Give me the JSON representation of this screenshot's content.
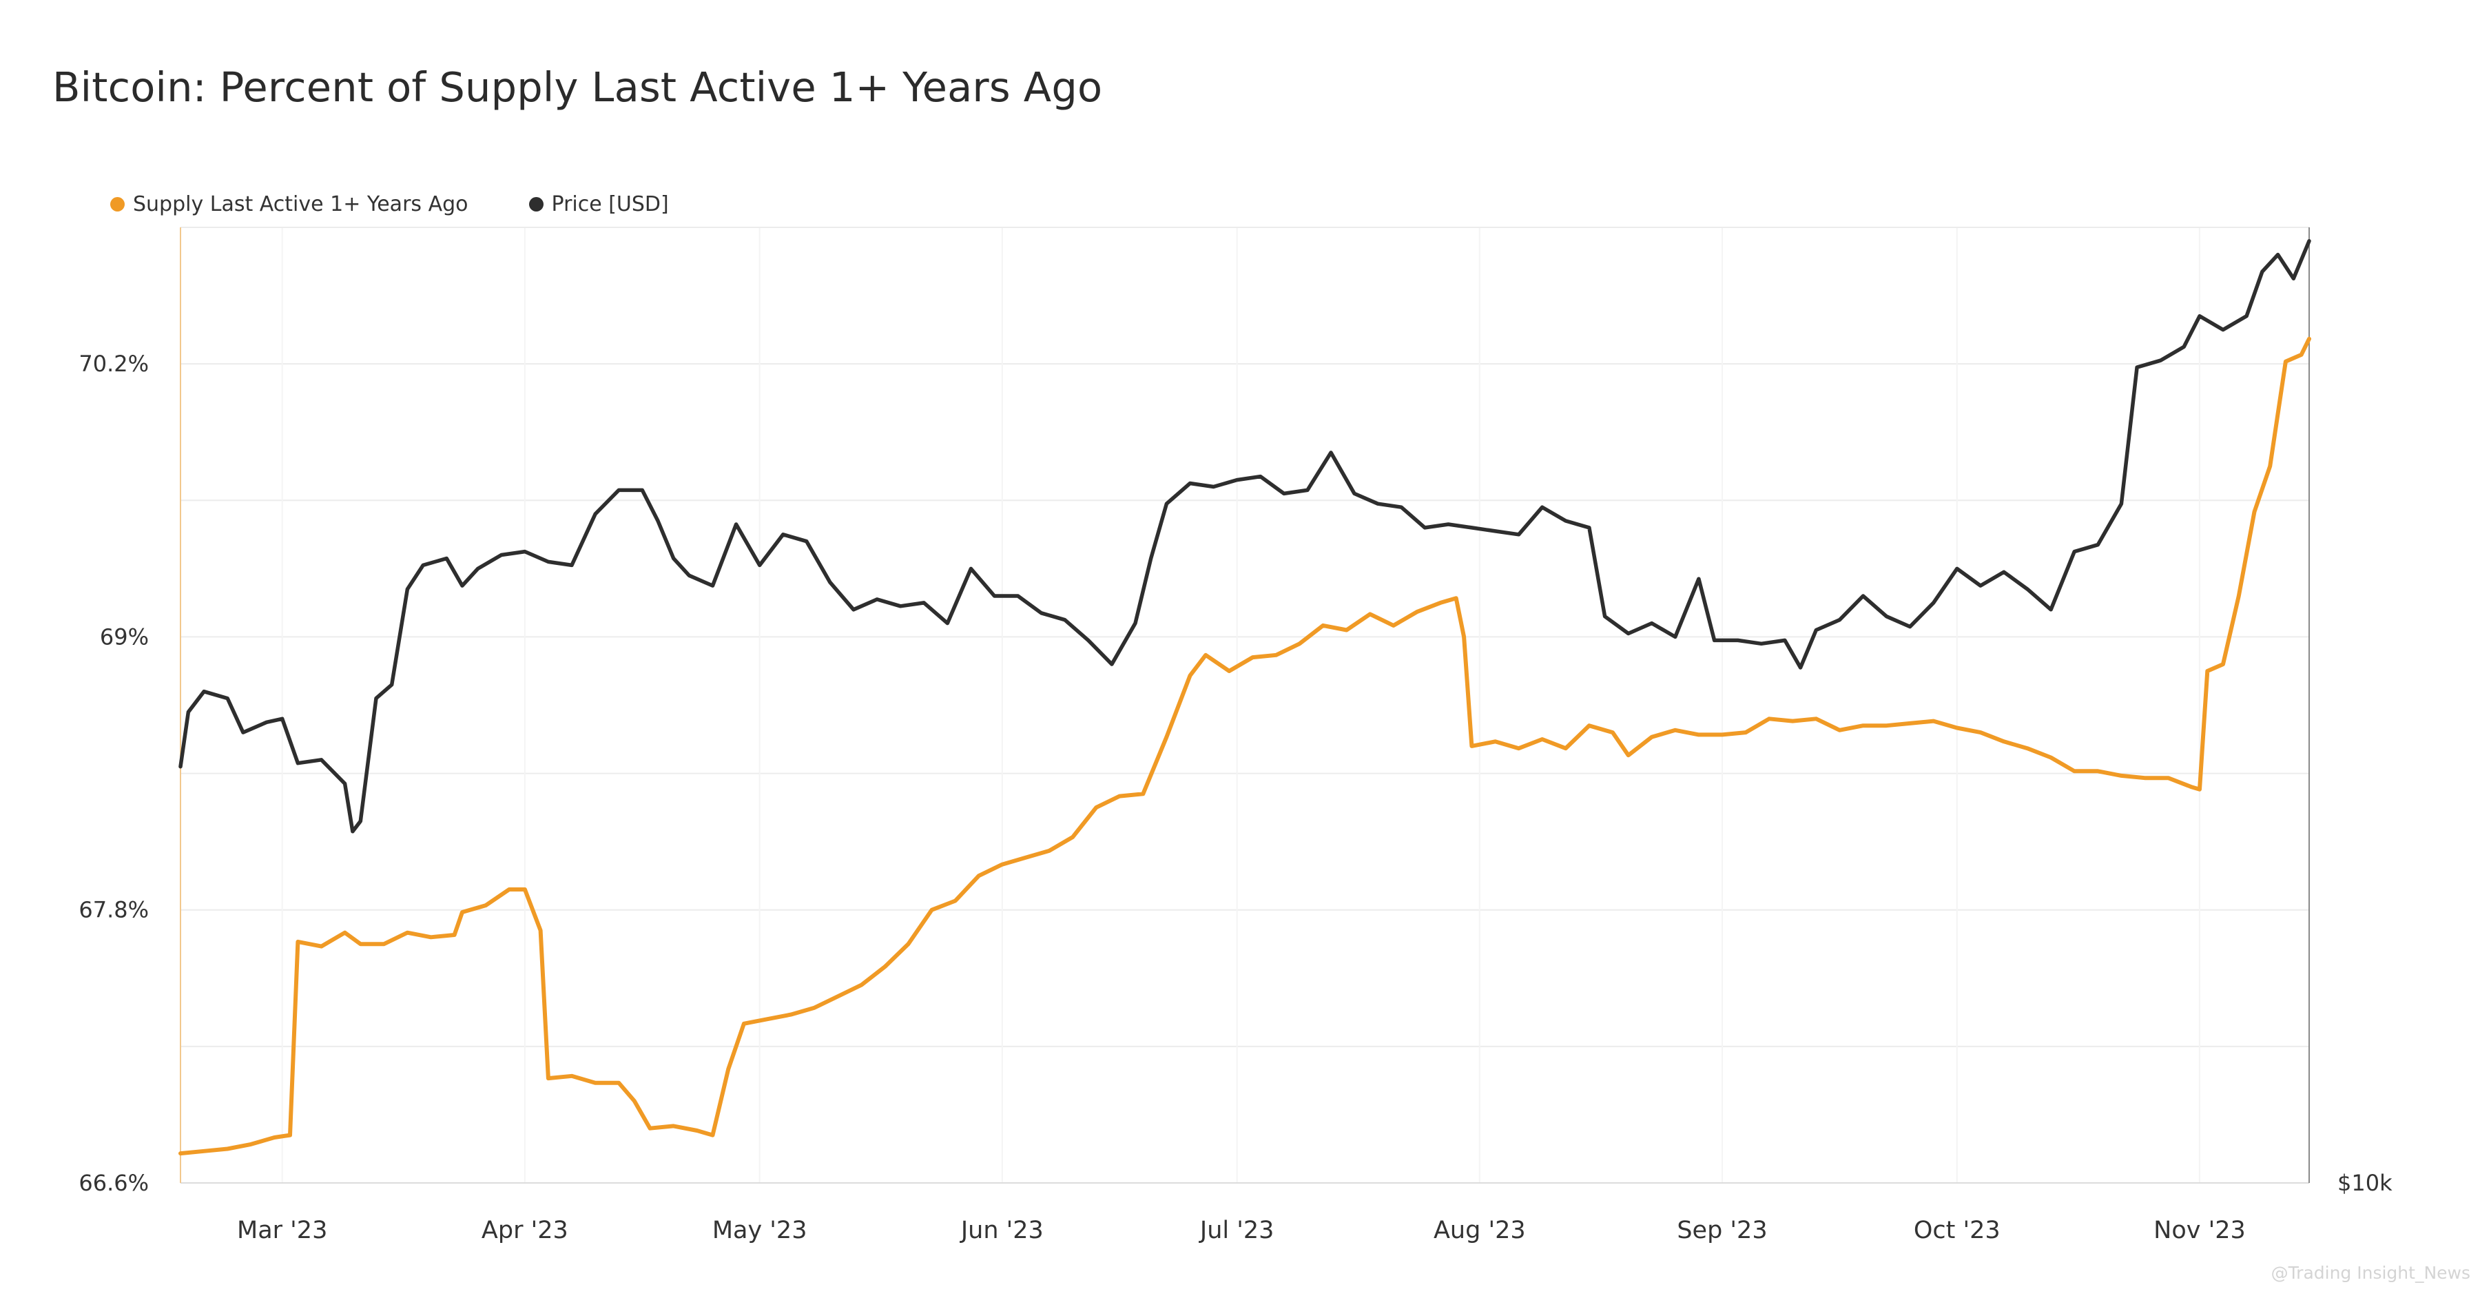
{
  "chart_data": {
    "type": "line",
    "title": "Bitcoin: Percent of Supply Last Active 1+ Years Ago",
    "x_ticks": [
      "Mar '23",
      "Apr '23",
      "May '23",
      "Jun '23",
      "Jul '23",
      "Aug '23",
      "Sep '23",
      "Oct '23",
      "Nov '23"
    ],
    "x_tick_dates": [
      "2023-03-01",
      "2023-04-01",
      "2023-05-01",
      "2023-06-01",
      "2023-07-01",
      "2023-08-01",
      "2023-09-01",
      "2023-10-01",
      "2023-11-01"
    ],
    "x_range": [
      "2023-02-16",
      "2023-11-15"
    ],
    "y_left_ticks": [
      "70.2%",
      "69%",
      "67.8%",
      "66.6%"
    ],
    "y_left_tick_values": [
      70.2,
      69.0,
      67.8,
      66.6
    ],
    "y_left_range": [
      66.6,
      70.8
    ],
    "y_right_ticks": [
      "$10k"
    ],
    "y_right_range": [
      10000,
      38000
    ],
    "grid": true,
    "legend_position": "top-left",
    "series": [
      {
        "name": "Supply Last Active 1+ Years Ago",
        "axis": "left",
        "color": "#f09a25",
        "points": [
          [
            "2023-02-16",
            66.73
          ],
          [
            "2023-02-19",
            66.74
          ],
          [
            "2023-02-22",
            66.75
          ],
          [
            "2023-02-25",
            66.77
          ],
          [
            "2023-02-28",
            66.8
          ],
          [
            "2023-03-02",
            66.81
          ],
          [
            "2023-03-03",
            67.66
          ],
          [
            "2023-03-06",
            67.64
          ],
          [
            "2023-03-09",
            67.7
          ],
          [
            "2023-03-11",
            67.65
          ],
          [
            "2023-03-14",
            67.65
          ],
          [
            "2023-03-17",
            67.7
          ],
          [
            "2023-03-20",
            67.68
          ],
          [
            "2023-03-23",
            67.69
          ],
          [
            "2023-03-24",
            67.79
          ],
          [
            "2023-03-27",
            67.82
          ],
          [
            "2023-03-30",
            67.89
          ],
          [
            "2023-04-01",
            67.89
          ],
          [
            "2023-04-03",
            67.71
          ],
          [
            "2023-04-04",
            67.06
          ],
          [
            "2023-04-07",
            67.07
          ],
          [
            "2023-04-10",
            67.04
          ],
          [
            "2023-04-13",
            67.04
          ],
          [
            "2023-04-15",
            66.96
          ],
          [
            "2023-04-17",
            66.84
          ],
          [
            "2023-04-20",
            66.85
          ],
          [
            "2023-04-23",
            66.83
          ],
          [
            "2023-04-25",
            66.81
          ],
          [
            "2023-04-27",
            67.1
          ],
          [
            "2023-04-29",
            67.3
          ],
          [
            "2023-05-02",
            67.32
          ],
          [
            "2023-05-05",
            67.34
          ],
          [
            "2023-05-08",
            67.37
          ],
          [
            "2023-05-11",
            67.42
          ],
          [
            "2023-05-14",
            67.47
          ],
          [
            "2023-05-17",
            67.55
          ],
          [
            "2023-05-20",
            67.65
          ],
          [
            "2023-05-23",
            67.8
          ],
          [
            "2023-05-26",
            67.84
          ],
          [
            "2023-05-29",
            67.95
          ],
          [
            "2023-06-01",
            68.0
          ],
          [
            "2023-06-04",
            68.03
          ],
          [
            "2023-06-07",
            68.06
          ],
          [
            "2023-06-10",
            68.12
          ],
          [
            "2023-06-13",
            68.25
          ],
          [
            "2023-06-16",
            68.3
          ],
          [
            "2023-06-19",
            68.31
          ],
          [
            "2023-06-22",
            68.56
          ],
          [
            "2023-06-25",
            68.83
          ],
          [
            "2023-06-27",
            68.92
          ],
          [
            "2023-06-30",
            68.85
          ],
          [
            "2023-07-03",
            68.91
          ],
          [
            "2023-07-06",
            68.92
          ],
          [
            "2023-07-09",
            68.97
          ],
          [
            "2023-07-12",
            69.05
          ],
          [
            "2023-07-15",
            69.03
          ],
          [
            "2023-07-18",
            69.1
          ],
          [
            "2023-07-21",
            69.05
          ],
          [
            "2023-07-24",
            69.11
          ],
          [
            "2023-07-27",
            69.15
          ],
          [
            "2023-07-29",
            69.17
          ],
          [
            "2023-07-30",
            69.0
          ],
          [
            "2023-07-31",
            68.52
          ],
          [
            "2023-08-03",
            68.54
          ],
          [
            "2023-08-06",
            68.51
          ],
          [
            "2023-08-09",
            68.55
          ],
          [
            "2023-08-12",
            68.51
          ],
          [
            "2023-08-15",
            68.61
          ],
          [
            "2023-08-18",
            68.58
          ],
          [
            "2023-08-20",
            68.48
          ],
          [
            "2023-08-23",
            68.56
          ],
          [
            "2023-08-26",
            68.59
          ],
          [
            "2023-08-29",
            68.57
          ],
          [
            "2023-09-01",
            68.57
          ],
          [
            "2023-09-04",
            68.58
          ],
          [
            "2023-09-07",
            68.64
          ],
          [
            "2023-09-10",
            68.63
          ],
          [
            "2023-09-13",
            68.64
          ],
          [
            "2023-09-16",
            68.59
          ],
          [
            "2023-09-19",
            68.61
          ],
          [
            "2023-09-22",
            68.61
          ],
          [
            "2023-09-25",
            68.62
          ],
          [
            "2023-09-28",
            68.63
          ],
          [
            "2023-10-01",
            68.6
          ],
          [
            "2023-10-04",
            68.58
          ],
          [
            "2023-10-07",
            68.54
          ],
          [
            "2023-10-10",
            68.51
          ],
          [
            "2023-10-13",
            68.47
          ],
          [
            "2023-10-16",
            68.41
          ],
          [
            "2023-10-19",
            68.41
          ],
          [
            "2023-10-22",
            68.39
          ],
          [
            "2023-10-25",
            68.38
          ],
          [
            "2023-10-28",
            68.38
          ],
          [
            "2023-10-31",
            68.34
          ],
          [
            "2023-11-01",
            68.33
          ],
          [
            "2023-11-02",
            68.85
          ],
          [
            "2023-11-04",
            68.88
          ],
          [
            "2023-11-06",
            69.18
          ],
          [
            "2023-11-08",
            69.55
          ],
          [
            "2023-11-10",
            69.75
          ],
          [
            "2023-11-12",
            70.21
          ],
          [
            "2023-11-14",
            70.24
          ],
          [
            "2023-11-15",
            70.31
          ]
        ]
      },
      {
        "name": "Price [USD]",
        "axis": "right",
        "color": "#2e2e2e",
        "points": [
          [
            "2023-02-16",
            22200
          ],
          [
            "2023-02-17",
            23800
          ],
          [
            "2023-02-19",
            24400
          ],
          [
            "2023-02-22",
            24200
          ],
          [
            "2023-02-24",
            23200
          ],
          [
            "2023-02-27",
            23500
          ],
          [
            "2023-03-01",
            23600
          ],
          [
            "2023-03-03",
            22300
          ],
          [
            "2023-03-06",
            22400
          ],
          [
            "2023-03-09",
            21700
          ],
          [
            "2023-03-10",
            20300
          ],
          [
            "2023-03-11",
            20600
          ],
          [
            "2023-03-13",
            24200
          ],
          [
            "2023-03-15",
            24600
          ],
          [
            "2023-03-17",
            27400
          ],
          [
            "2023-03-19",
            28100
          ],
          [
            "2023-03-22",
            28300
          ],
          [
            "2023-03-24",
            27500
          ],
          [
            "2023-03-26",
            28000
          ],
          [
            "2023-03-29",
            28400
          ],
          [
            "2023-04-01",
            28500
          ],
          [
            "2023-04-04",
            28200
          ],
          [
            "2023-04-07",
            28100
          ],
          [
            "2023-04-10",
            29600
          ],
          [
            "2023-04-13",
            30300
          ],
          [
            "2023-04-16",
            30300
          ],
          [
            "2023-04-18",
            29400
          ],
          [
            "2023-04-20",
            28300
          ],
          [
            "2023-04-22",
            27800
          ],
          [
            "2023-04-25",
            27500
          ],
          [
            "2023-04-28",
            29300
          ],
          [
            "2023-05-01",
            28100
          ],
          [
            "2023-05-04",
            29000
          ],
          [
            "2023-05-07",
            28800
          ],
          [
            "2023-05-10",
            27600
          ],
          [
            "2023-05-13",
            26800
          ],
          [
            "2023-05-16",
            27100
          ],
          [
            "2023-05-19",
            26900
          ],
          [
            "2023-05-22",
            27000
          ],
          [
            "2023-05-25",
            26400
          ],
          [
            "2023-05-28",
            28000
          ],
          [
            "2023-05-31",
            27200
          ],
          [
            "2023-06-03",
            27200
          ],
          [
            "2023-06-06",
            26700
          ],
          [
            "2023-06-09",
            26500
          ],
          [
            "2023-06-12",
            25900
          ],
          [
            "2023-06-15",
            25200
          ],
          [
            "2023-06-18",
            26400
          ],
          [
            "2023-06-20",
            28300
          ],
          [
            "2023-06-22",
            29900
          ],
          [
            "2023-06-25",
            30500
          ],
          [
            "2023-06-28",
            30400
          ],
          [
            "2023-07-01",
            30600
          ],
          [
            "2023-07-04",
            30700
          ],
          [
            "2023-07-07",
            30200
          ],
          [
            "2023-07-10",
            30300
          ],
          [
            "2023-07-13",
            31400
          ],
          [
            "2023-07-16",
            30200
          ],
          [
            "2023-07-19",
            29900
          ],
          [
            "2023-07-22",
            29800
          ],
          [
            "2023-07-25",
            29200
          ],
          [
            "2023-07-28",
            29300
          ],
          [
            "2023-07-31",
            29200
          ],
          [
            "2023-08-03",
            29100
          ],
          [
            "2023-08-06",
            29000
          ],
          [
            "2023-08-09",
            29800
          ],
          [
            "2023-08-12",
            29400
          ],
          [
            "2023-08-15",
            29200
          ],
          [
            "2023-08-17",
            26600
          ],
          [
            "2023-08-20",
            26100
          ],
          [
            "2023-08-23",
            26400
          ],
          [
            "2023-08-26",
            26000
          ],
          [
            "2023-08-29",
            27700
          ],
          [
            "2023-08-31",
            25900
          ],
          [
            "2023-09-03",
            25900
          ],
          [
            "2023-09-06",
            25800
          ],
          [
            "2023-09-09",
            25900
          ],
          [
            "2023-09-11",
            25100
          ],
          [
            "2023-09-13",
            26200
          ],
          [
            "2023-09-16",
            26500
          ],
          [
            "2023-09-19",
            27200
          ],
          [
            "2023-09-22",
            26600
          ],
          [
            "2023-09-25",
            26300
          ],
          [
            "2023-09-28",
            27000
          ],
          [
            "2023-10-01",
            28000
          ],
          [
            "2023-10-04",
            27500
          ],
          [
            "2023-10-07",
            27900
          ],
          [
            "2023-10-10",
            27400
          ],
          [
            "2023-10-13",
            26800
          ],
          [
            "2023-10-16",
            28500
          ],
          [
            "2023-10-19",
            28700
          ],
          [
            "2023-10-22",
            29900
          ],
          [
            "2023-10-24",
            33900
          ],
          [
            "2023-10-27",
            34100
          ],
          [
            "2023-10-30",
            34500
          ],
          [
            "2023-11-01",
            35400
          ],
          [
            "2023-11-04",
            35000
          ],
          [
            "2023-11-07",
            35400
          ],
          [
            "2023-11-09",
            36700
          ],
          [
            "2023-11-11",
            37200
          ],
          [
            "2023-11-13",
            36500
          ],
          [
            "2023-11-15",
            37600
          ]
        ]
      }
    ]
  },
  "watermark": "@Trading Insight_News"
}
